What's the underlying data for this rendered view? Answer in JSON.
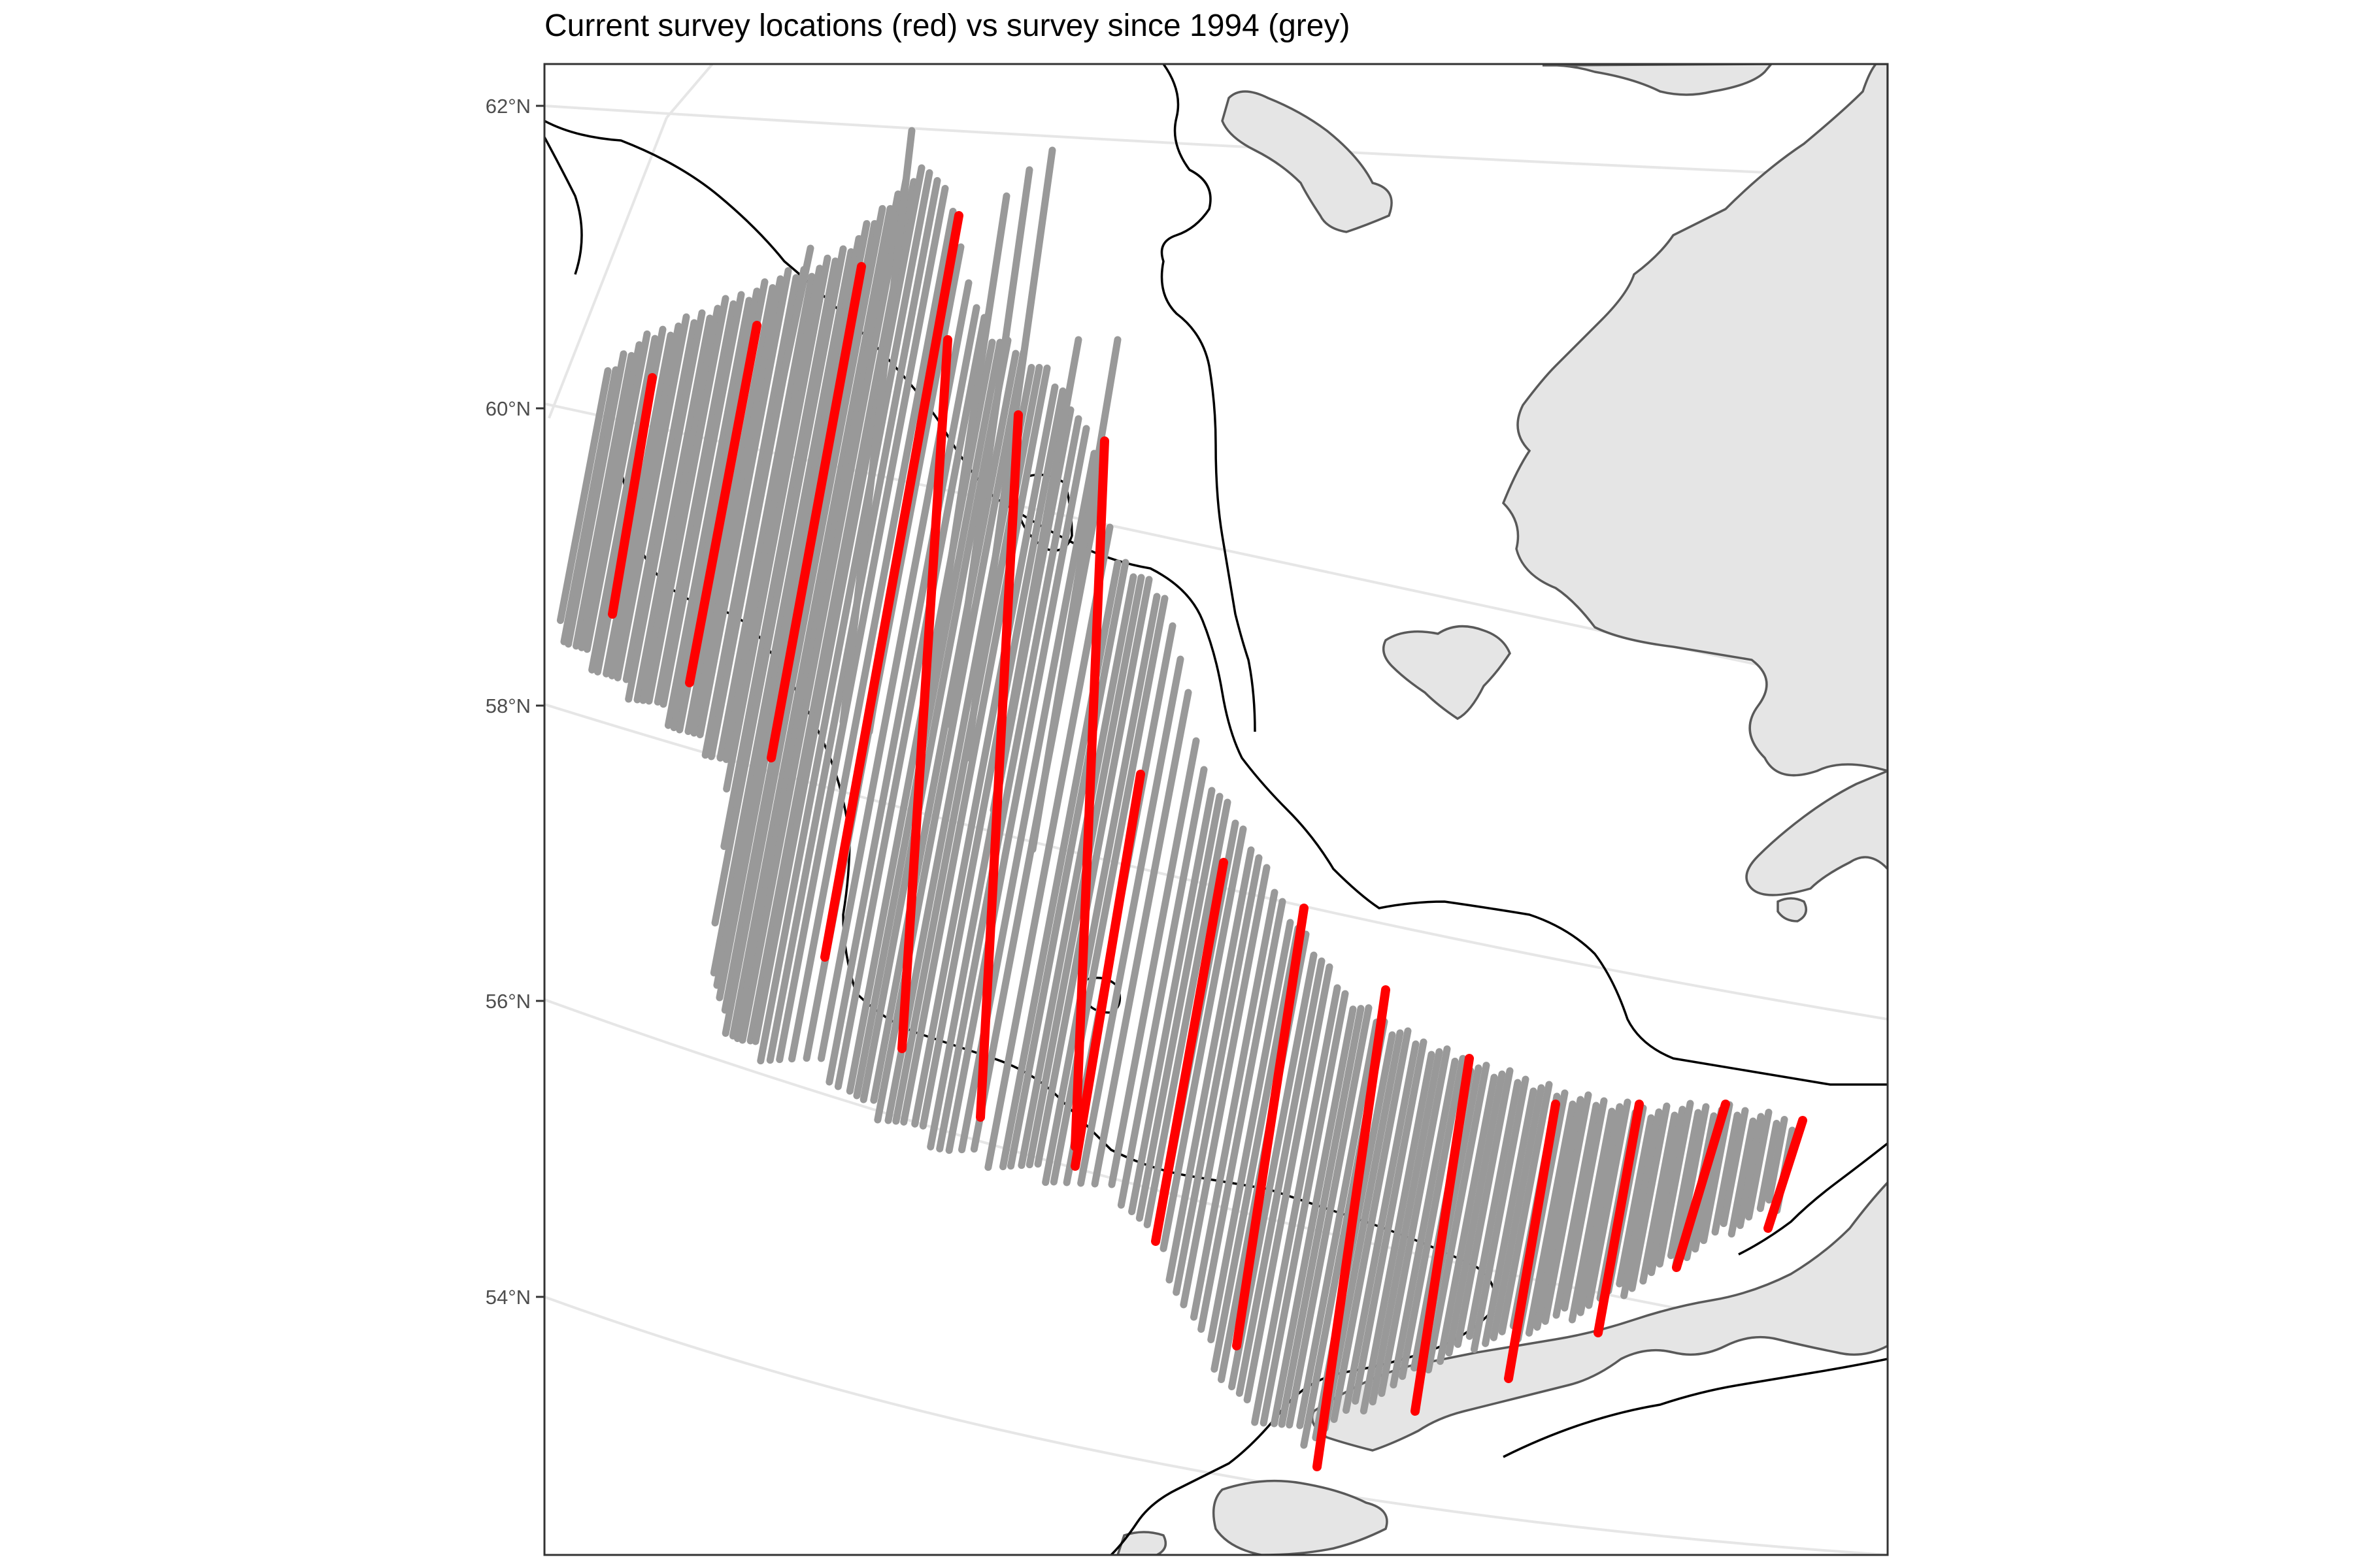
{
  "title": "Current survey locations (red) vs survey since 1994 (grey)",
  "latitude_labels": [
    "62°N",
    "60°N",
    "58°N",
    "56°N",
    "54°N"
  ],
  "legend": {
    "current": "red",
    "historical": "grey"
  },
  "colors": {
    "current_track": "#ff0000",
    "historical_track": "#999999",
    "land_fill": "#e5e5e5",
    "coastline": "#595959",
    "contour": "#000000",
    "graticule": "#e6e6e6",
    "panel_border": "#333333"
  }
}
